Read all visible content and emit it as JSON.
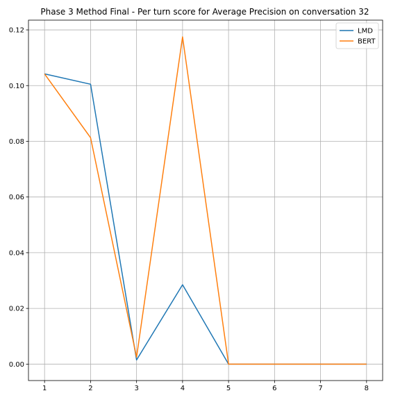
{
  "chart_data": {
    "type": "line",
    "title": "Phase 3 Method Final - Per turn score for Average Precision on conversation 32",
    "xlabel": "",
    "ylabel": "",
    "x": [
      1,
      2,
      3,
      4,
      5,
      6,
      7,
      8
    ],
    "xlim": [
      0.65,
      8.35
    ],
    "ylim": [
      -0.0059,
      0.1235
    ],
    "x_ticks": [
      "1",
      "2",
      "3",
      "4",
      "5",
      "6",
      "7",
      "8"
    ],
    "y_ticks": [
      "0.00",
      "0.02",
      "0.04",
      "0.06",
      "0.08",
      "0.10",
      "0.12"
    ],
    "grid": true,
    "legend_position": "top-right",
    "series": [
      {
        "name": "LMD",
        "color": "#1f77b4",
        "values": [
          0.1042,
          0.1005,
          0.0015,
          0.0285,
          0.0,
          0.0,
          0.0,
          0.0
        ]
      },
      {
        "name": "BERT",
        "color": "#ff7f0e",
        "values": [
          0.1042,
          0.0813,
          0.0025,
          0.1175,
          0.0,
          0.0,
          0.0,
          0.0
        ]
      }
    ]
  }
}
